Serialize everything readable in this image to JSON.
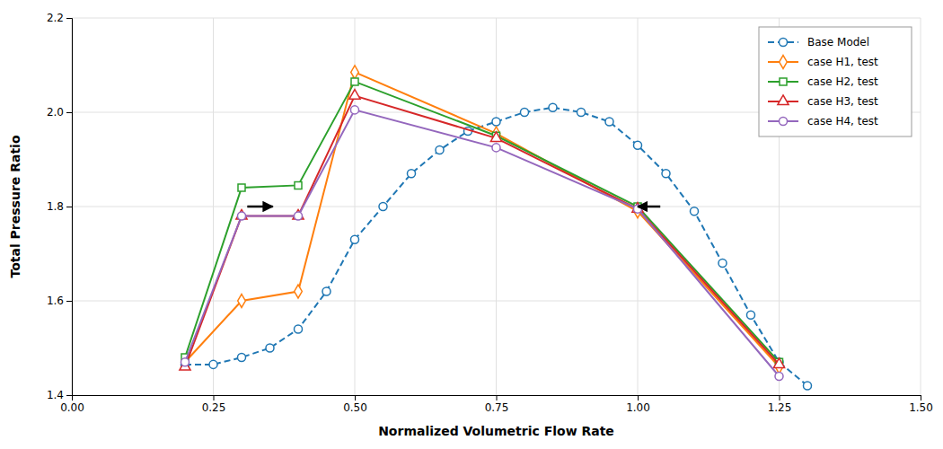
{
  "chart_data": {
    "type": "line",
    "xlabel": "Normalized Volumetric Flow Rate",
    "ylabel": "Total Pressure Ratio",
    "xlim": [
      0.0,
      1.5
    ],
    "ylim": [
      1.4,
      2.2
    ],
    "xticks": [
      {
        "value": 0.0,
        "label": "0.00"
      },
      0.25,
      {
        "value": 0.5,
        "label": "0.50"
      },
      0.75,
      {
        "value": 1.0,
        "label": "1.00"
      },
      1.25,
      {
        "value": 1.5,
        "label": "1.50"
      }
    ],
    "yticks": [
      1.4,
      1.6,
      1.8,
      {
        "value": 2.0,
        "label": "2.0"
      },
      2.2
    ],
    "grid": true,
    "legend": "upper right",
    "series": [
      {
        "name": "Base Model",
        "marker": "circle",
        "line_style": "dashed",
        "x": [
          0.2,
          0.25,
          0.3,
          0.35,
          0.4,
          0.45,
          0.5,
          0.55,
          0.6,
          0.65,
          0.7,
          0.75,
          0.8,
          0.85,
          0.9,
          0.95,
          1.0,
          1.05,
          1.1,
          1.15,
          1.2,
          1.25,
          1.3
        ],
        "values": [
          1.465,
          1.465,
          1.48,
          1.5,
          1.54,
          1.62,
          1.73,
          1.8,
          1.87,
          1.92,
          1.96,
          1.98,
          2.0,
          2.01,
          2.0,
          1.98,
          1.93,
          1.87,
          1.79,
          1.68,
          1.57,
          1.47,
          1.42
        ]
      },
      {
        "name": "case H1, test",
        "marker": "diamond",
        "line_style": "solid",
        "x": [
          0.2,
          0.3,
          0.4,
          0.5,
          0.75,
          1.0,
          1.25
        ],
        "values": [
          1.47,
          1.6,
          1.62,
          2.085,
          1.955,
          1.79,
          1.46
        ]
      },
      {
        "name": "case H2, test",
        "marker": "square",
        "line_style": "solid",
        "x": [
          0.2,
          0.3,
          0.4,
          0.5,
          0.75,
          1.0,
          1.25
        ],
        "values": [
          1.48,
          1.84,
          1.845,
          2.065,
          1.95,
          1.8,
          1.47
        ]
      },
      {
        "name": "case H3, test",
        "marker": "triangle",
        "line_style": "solid",
        "x": [
          0.2,
          0.3,
          0.4,
          0.5,
          0.75,
          1.0,
          1.25
        ],
        "values": [
          1.46,
          1.78,
          1.78,
          2.035,
          1.945,
          1.795,
          1.465
        ]
      },
      {
        "name": "case H4, test",
        "marker": "circle",
        "line_style": "solid",
        "x": [
          0.2,
          0.3,
          0.4,
          0.5,
          0.75,
          1.0,
          1.25
        ],
        "values": [
          1.47,
          1.78,
          1.78,
          2.005,
          1.925,
          1.795,
          1.44
        ]
      }
    ],
    "arrows": [
      {
        "tail": [
          0.31,
          1.8
        ],
        "head": [
          0.355,
          1.8
        ]
      },
      {
        "tail": [
          1.04,
          1.8
        ],
        "head": [
          1.0,
          1.8
        ]
      }
    ]
  }
}
